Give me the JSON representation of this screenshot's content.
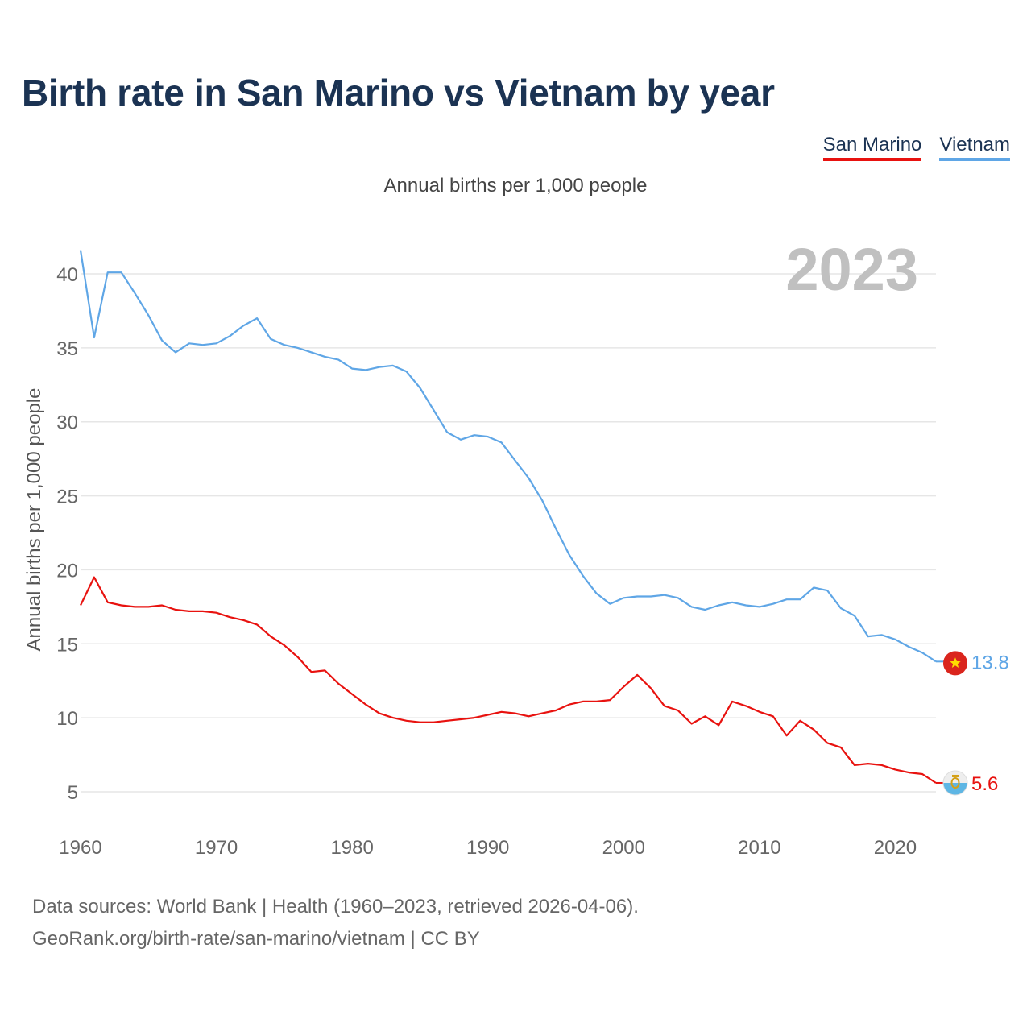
{
  "title": "Birth rate in San Marino vs Vietnam by year",
  "subtitle": "Annual births per 1,000 people",
  "legend": [
    {
      "name": "San Marino",
      "color": "#e8120f"
    },
    {
      "name": "Vietnam",
      "color": "#5fa6e6"
    }
  ],
  "year_label": "2023",
  "source_line1": "Data sources: World Bank | Health (1960–2023, retrieved 2026-04-06).",
  "source_line2": "GeoRank.org/birth-rate/san-marino/vietnam | CC BY",
  "chart_data": {
    "type": "line",
    "title": "Birth rate in San Marino vs Vietnam by year",
    "xlabel": "",
    "ylabel": "Annual births per 1,000 people",
    "xlim": [
      1960,
      2023
    ],
    "ylim": [
      3,
      42
    ],
    "grid": true,
    "x_ticks": [
      1960,
      1970,
      1980,
      1990,
      2000,
      2010,
      2020
    ],
    "y_ticks": [
      5,
      10,
      15,
      20,
      25,
      30,
      35,
      40
    ],
    "x": [
      1960,
      1961,
      1962,
      1963,
      1964,
      1965,
      1966,
      1967,
      1968,
      1969,
      1970,
      1971,
      1972,
      1973,
      1974,
      1975,
      1976,
      1977,
      1978,
      1979,
      1980,
      1981,
      1982,
      1983,
      1984,
      1985,
      1986,
      1987,
      1988,
      1989,
      1990,
      1991,
      1992,
      1993,
      1994,
      1995,
      1996,
      1997,
      1998,
      1999,
      2000,
      2001,
      2002,
      2003,
      2004,
      2005,
      2006,
      2007,
      2008,
      2009,
      2010,
      2011,
      2012,
      2013,
      2014,
      2015,
      2016,
      2017,
      2018,
      2019,
      2020,
      2021,
      2022,
      2023
    ],
    "series": [
      {
        "name": "San Marino",
        "color": "#e8120f",
        "end_label": "5.6",
        "flag_icon": "san-marino-flag-icon",
        "values": [
          17.6,
          19.5,
          17.8,
          17.6,
          17.5,
          17.5,
          17.6,
          17.3,
          17.2,
          17.2,
          17.1,
          16.8,
          16.6,
          16.3,
          15.5,
          14.9,
          14.1,
          13.1,
          13.2,
          12.3,
          11.6,
          10.9,
          10.3,
          10.0,
          9.8,
          9.7,
          9.7,
          9.8,
          9.9,
          10.0,
          10.2,
          10.4,
          10.3,
          10.1,
          10.3,
          10.5,
          10.9,
          11.1,
          11.1,
          11.2,
          12.1,
          12.9,
          12.0,
          10.8,
          10.5,
          9.6,
          10.1,
          9.5,
          11.1,
          10.8,
          10.4,
          10.1,
          8.8,
          9.8,
          9.2,
          8.3,
          8.0,
          6.8,
          6.9,
          6.8,
          6.5,
          6.3,
          6.2,
          5.6
        ]
      },
      {
        "name": "Vietnam",
        "color": "#5fa6e6",
        "end_label": "13.8",
        "flag_icon": "vietnam-flag-icon",
        "values": [
          41.6,
          35.7,
          40.1,
          40.1,
          38.7,
          37.2,
          35.5,
          34.7,
          35.3,
          35.2,
          35.3,
          35.8,
          36.5,
          37.0,
          35.6,
          35.2,
          35.0,
          34.7,
          34.4,
          34.2,
          33.6,
          33.5,
          33.7,
          33.8,
          33.4,
          32.3,
          30.8,
          29.3,
          28.8,
          29.1,
          29.0,
          28.6,
          27.4,
          26.2,
          24.7,
          22.8,
          21.0,
          19.6,
          18.4,
          17.7,
          18.1,
          18.2,
          18.2,
          18.3,
          18.1,
          17.5,
          17.3,
          17.6,
          17.8,
          17.6,
          17.5,
          17.7,
          18.0,
          18.0,
          18.8,
          18.6,
          17.4,
          16.9,
          15.5,
          15.6,
          15.3,
          14.8,
          14.4,
          13.8
        ]
      }
    ]
  }
}
